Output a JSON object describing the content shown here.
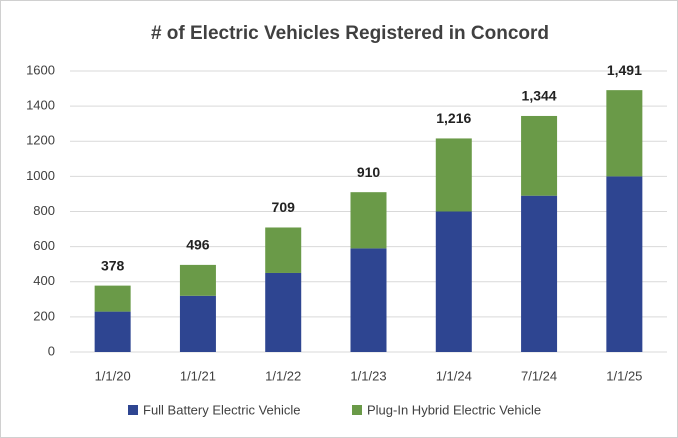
{
  "chart_data": {
    "type": "stacked_bar",
    "title": "# of Electric Vehicles Registered in Concord",
    "categories": [
      "1/1/20",
      "1/1/21",
      "1/1/22",
      "1/1/23",
      "1/1/24",
      "7/1/24",
      "1/1/25"
    ],
    "series": [
      {
        "name": "Full Battery Electric Vehicle",
        "color": "#2e4591",
        "values": [
          230,
          320,
          450,
          590,
          800,
          890,
          1000
        ]
      },
      {
        "name": "Plug-In Hybrid Electric Vehicle",
        "color": "#6a9a48",
        "values": [
          148,
          176,
          259,
          320,
          416,
          454,
          491
        ]
      }
    ],
    "total_labels": [
      "378",
      "496",
      "709",
      "910",
      "1,216",
      "1,344",
      "1,491"
    ],
    "ylim": [
      0,
      1600
    ],
    "yticks": [
      0,
      200,
      400,
      600,
      800,
      1000,
      1200,
      1400,
      1600
    ],
    "grid": true,
    "legend": "bottom"
  }
}
